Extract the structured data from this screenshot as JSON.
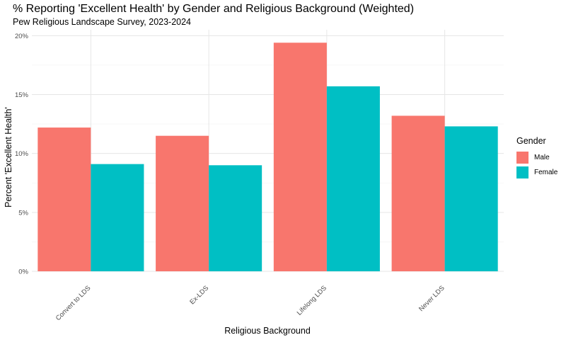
{
  "chart_data": {
    "type": "bar",
    "title": "% Reporting 'Excellent Health' by Gender and Religious Background (Weighted)",
    "subtitle": "Pew Religious Landscape Survey, 2023-2024",
    "xlabel": "Religious Background",
    "ylabel": "Percent 'Excellent Health'",
    "categories": [
      "Convert to LDS",
      "Ex-LDS",
      "Lifelong LDS",
      "Never LDS"
    ],
    "series": [
      {
        "name": "Male",
        "color": "#F8766D",
        "values": [
          12.2,
          11.5,
          19.4,
          13.2
        ]
      },
      {
        "name": "Female",
        "color": "#00BFC4",
        "values": [
          9.1,
          9.0,
          15.7,
          12.3
        ]
      }
    ],
    "ylim": [
      0,
      20.5
    ],
    "yticks": [
      0,
      5,
      10,
      15,
      20
    ],
    "ytick_labels": [
      "0%",
      "5%",
      "10%",
      "15%",
      "20%"
    ],
    "grid": true,
    "legend": {
      "title": "Gender",
      "placement": "right"
    }
  }
}
